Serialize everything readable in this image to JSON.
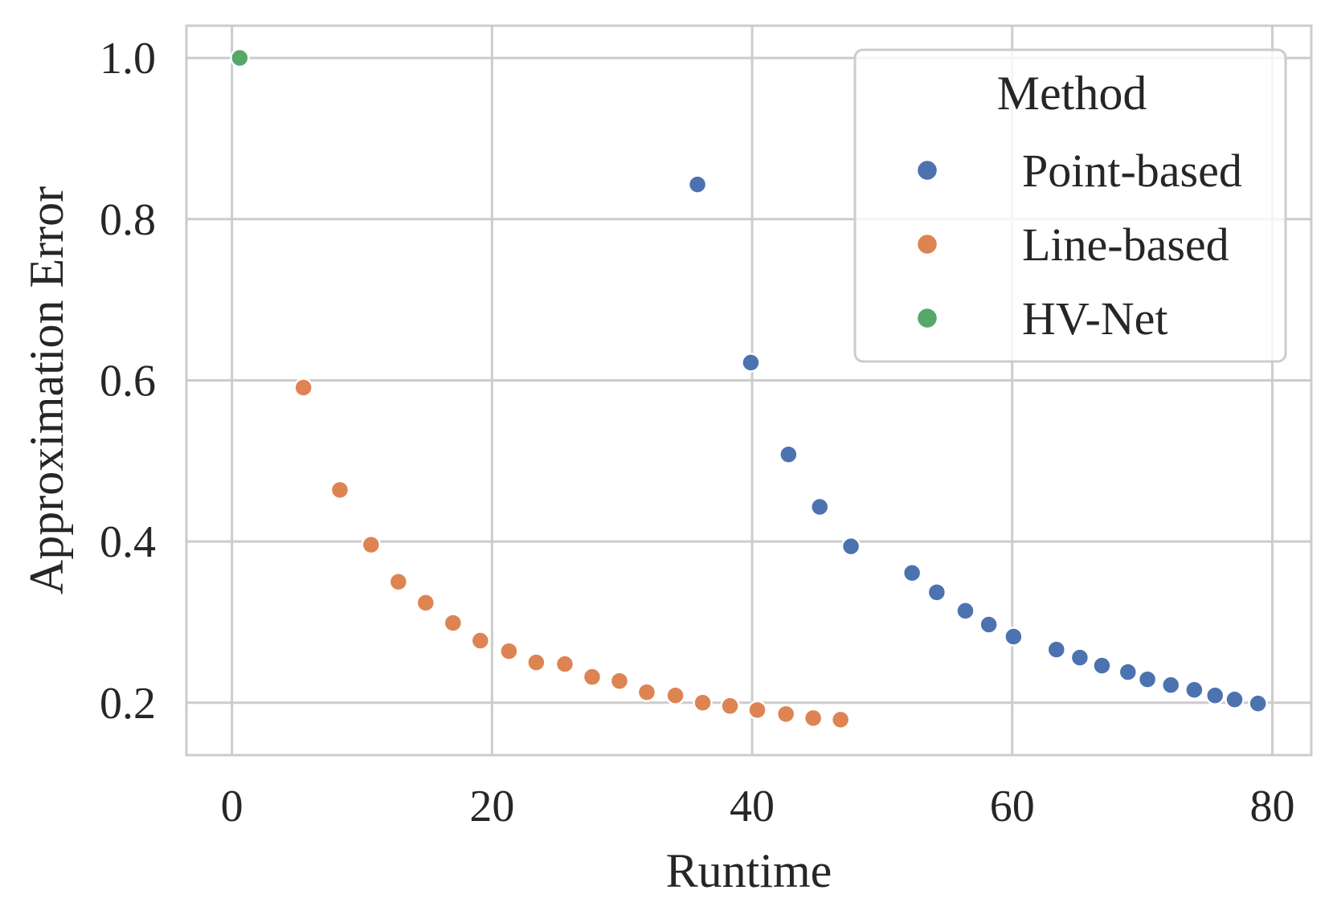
{
  "chart_data": {
    "type": "scatter",
    "title": "",
    "xlabel": "Runtime",
    "ylabel": "Approximation Error",
    "xlim": [
      -3.5,
      83
    ],
    "ylim": [
      0.135,
      1.04
    ],
    "xticks": [
      0,
      20,
      40,
      60,
      80
    ],
    "yticks": [
      0.2,
      0.4,
      0.6,
      0.8,
      1.0
    ],
    "xtick_labels": [
      "0",
      "20",
      "40",
      "60",
      "80"
    ],
    "ytick_labels": [
      "0.2",
      "0.4",
      "0.6",
      "0.8",
      "1.0"
    ],
    "grid": true,
    "legend": {
      "title": "Method",
      "position": "top-right"
    },
    "series": [
      {
        "name": "Point-based",
        "color": "#4c72b0",
        "x": [
          35.8,
          39.9,
          42.8,
          45.2,
          47.6,
          52.3,
          54.2,
          56.4,
          58.2,
          60.1,
          63.4,
          65.2,
          66.9,
          68.9,
          70.4,
          72.2,
          74.0,
          75.6,
          77.1,
          78.9
        ],
        "y": [
          0.843,
          0.622,
          0.508,
          0.443,
          0.394,
          0.361,
          0.337,
          0.314,
          0.297,
          0.282,
          0.266,
          0.256,
          0.246,
          0.238,
          0.229,
          0.222,
          0.216,
          0.209,
          0.204,
          0.199
        ]
      },
      {
        "name": "Line-based",
        "color": "#dd8452",
        "x": [
          5.5,
          8.3,
          10.7,
          12.8,
          14.9,
          17.0,
          19.1,
          21.3,
          23.4,
          25.6,
          27.7,
          29.8,
          31.9,
          34.1,
          36.2,
          38.3,
          40.4,
          42.6,
          44.7,
          46.8
        ],
        "y": [
          0.591,
          0.464,
          0.396,
          0.35,
          0.324,
          0.299,
          0.277,
          0.264,
          0.25,
          0.248,
          0.232,
          0.227,
          0.213,
          0.209,
          0.2,
          0.196,
          0.191,
          0.186,
          0.181,
          0.179
        ]
      },
      {
        "name": "HV-Net",
        "color": "#55a868",
        "x": [
          0.6
        ],
        "y": [
          1.0
        ]
      }
    ]
  }
}
